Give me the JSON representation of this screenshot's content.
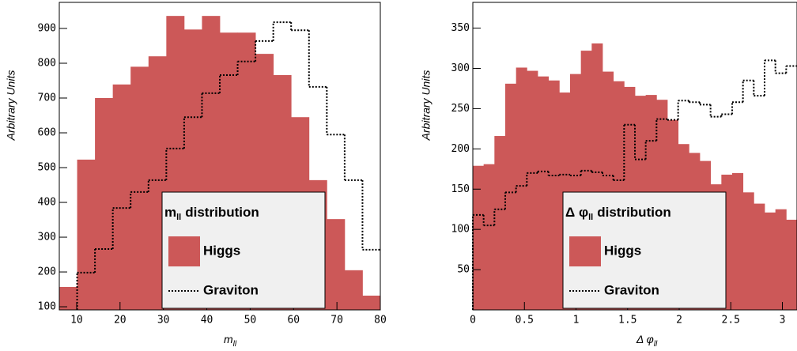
{
  "chart_data": [
    {
      "type": "histogram",
      "xlabel": {
        "text": "m",
        "sub": "ll"
      },
      "ylabel": "Arbitrary Units",
      "legend_title": {
        "text": "m",
        "sub": "ll",
        "after": "distribution"
      },
      "xlim": [
        6,
        80
      ],
      "ylim": [
        91,
        975
      ],
      "xticks": [
        10,
        20,
        30,
        40,
        50,
        60,
        70,
        80
      ],
      "yticks": [
        100,
        200,
        300,
        400,
        500,
        600,
        700,
        800,
        900
      ],
      "bins": [
        6,
        10.11,
        14.22,
        18.33,
        22.44,
        26.56,
        30.67,
        34.78,
        38.89,
        43,
        47.11,
        51.22,
        55.33,
        59.44,
        63.56,
        67.67,
        71.78,
        75.89,
        80
      ],
      "series": [
        {
          "name": "Higgs",
          "color": "#cc5858",
          "style": "filled",
          "values": [
            157,
            523,
            700,
            739,
            790,
            820,
            936,
            897,
            936,
            888,
            888,
            827,
            766,
            645,
            464,
            352,
            205,
            132
          ]
        },
        {
          "name": "Graviton",
          "color": "#000000",
          "style": "dotted",
          "values": [
            null,
            198,
            266,
            384,
            430,
            464,
            555,
            645,
            714,
            766,
            805,
            864,
            918,
            895,
            732,
            595,
            464,
            264
          ]
        }
      ]
    },
    {
      "type": "histogram",
      "xlabel": {
        "text": "Δ φ",
        "sub": "ll"
      },
      "ylabel": "Arbitrary Units",
      "legend_title": {
        "text": "Δ φ",
        "sub": "ll",
        "after": "distribution"
      },
      "xlim": [
        0,
        3.1416
      ],
      "ylim": [
        0,
        382
      ],
      "xticks": [
        0,
        0.5,
        1,
        1.5,
        2,
        2.5,
        3
      ],
      "yticks": [
        50,
        100,
        150,
        200,
        250,
        300,
        350
      ],
      "bins": [
        0,
        0.1047,
        0.2094,
        0.3142,
        0.4189,
        0.5236,
        0.6283,
        0.733,
        0.8378,
        0.9425,
        1.0472,
        1.1519,
        1.2566,
        1.3614,
        1.4661,
        1.5708,
        1.6755,
        1.7802,
        1.885,
        1.9897,
        2.0944,
        2.1991,
        2.3038,
        2.4086,
        2.5133,
        2.618,
        2.7227,
        2.8274,
        2.9322,
        3.0369,
        3.1416
      ],
      "series": [
        {
          "name": "Higgs",
          "color": "#cc5858",
          "style": "filled",
          "values": [
            179,
            181,
            216,
            281,
            301,
            297,
            290,
            285,
            270,
            293,
            322,
            331,
            296,
            284,
            277,
            266,
            267,
            261,
            236,
            206,
            195,
            185,
            156,
            168,
            170,
            146,
            132,
            121,
            125,
            112
          ]
        },
        {
          "name": "Graviton",
          "color": "#000000",
          "style": "dotted",
          "values": [
            118,
            105,
            125,
            146,
            154,
            170,
            172,
            167,
            168,
            167,
            173,
            171,
            167,
            161,
            230,
            187,
            210,
            237,
            236,
            260,
            258,
            255,
            240,
            243,
            258,
            285,
            266,
            310,
            294,
            303
          ]
        }
      ]
    }
  ]
}
